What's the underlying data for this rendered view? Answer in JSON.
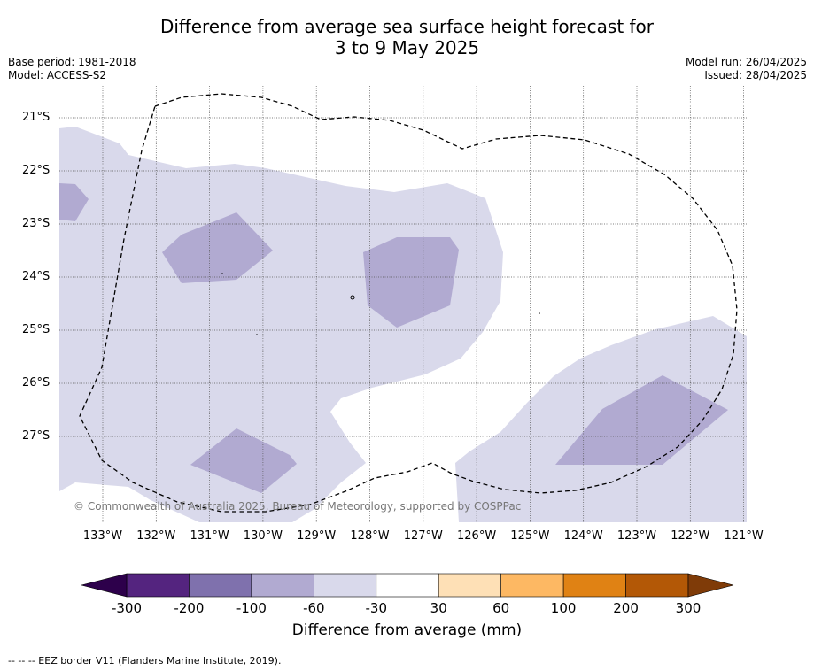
{
  "title_line1": "Difference from average sea surface height forecast for",
  "title_line2": "3 to 9 May 2025",
  "meta_left": {
    "base_period": "Base period: 1981-2018",
    "model": "Model: ACCESS-S2"
  },
  "meta_right": {
    "model_run": "Model run: 26/04/2025",
    "issued": "Issued: 28/04/2025"
  },
  "copyright": "© Commonwealth of Australia 2025, Bureau of Meteorology, supported by COSPPac",
  "lat_labels": [
    "21°S",
    "22°S",
    "23°S",
    "24°S",
    "25°S",
    "26°S",
    "27°S"
  ],
  "lon_labels": [
    "133°W",
    "132°W",
    "131°W",
    "130°W",
    "129°W",
    "128°W",
    "127°W",
    "126°W",
    "125°W",
    "124°W",
    "123°W",
    "122°W",
    "121°W"
  ],
  "colorbar": {
    "title": "Difference from average (mm)",
    "ticks": [
      "-300",
      "-200",
      "-100",
      "-60",
      "-30",
      "30",
      "60",
      "100",
      "200",
      "300"
    ],
    "colors": [
      "#54247f",
      "#7f71ad",
      "#b1aad1",
      "#d9d9eb",
      "#ffffff",
      "#fee0b6",
      "#fdb863",
      "#e08214",
      "#b35806"
    ],
    "under_color": "#2d004b",
    "over_color": "#7f3b08"
  },
  "footnote": "--  --  -- EEZ border V11 (Flanders Marine Institute, 2019)."
}
